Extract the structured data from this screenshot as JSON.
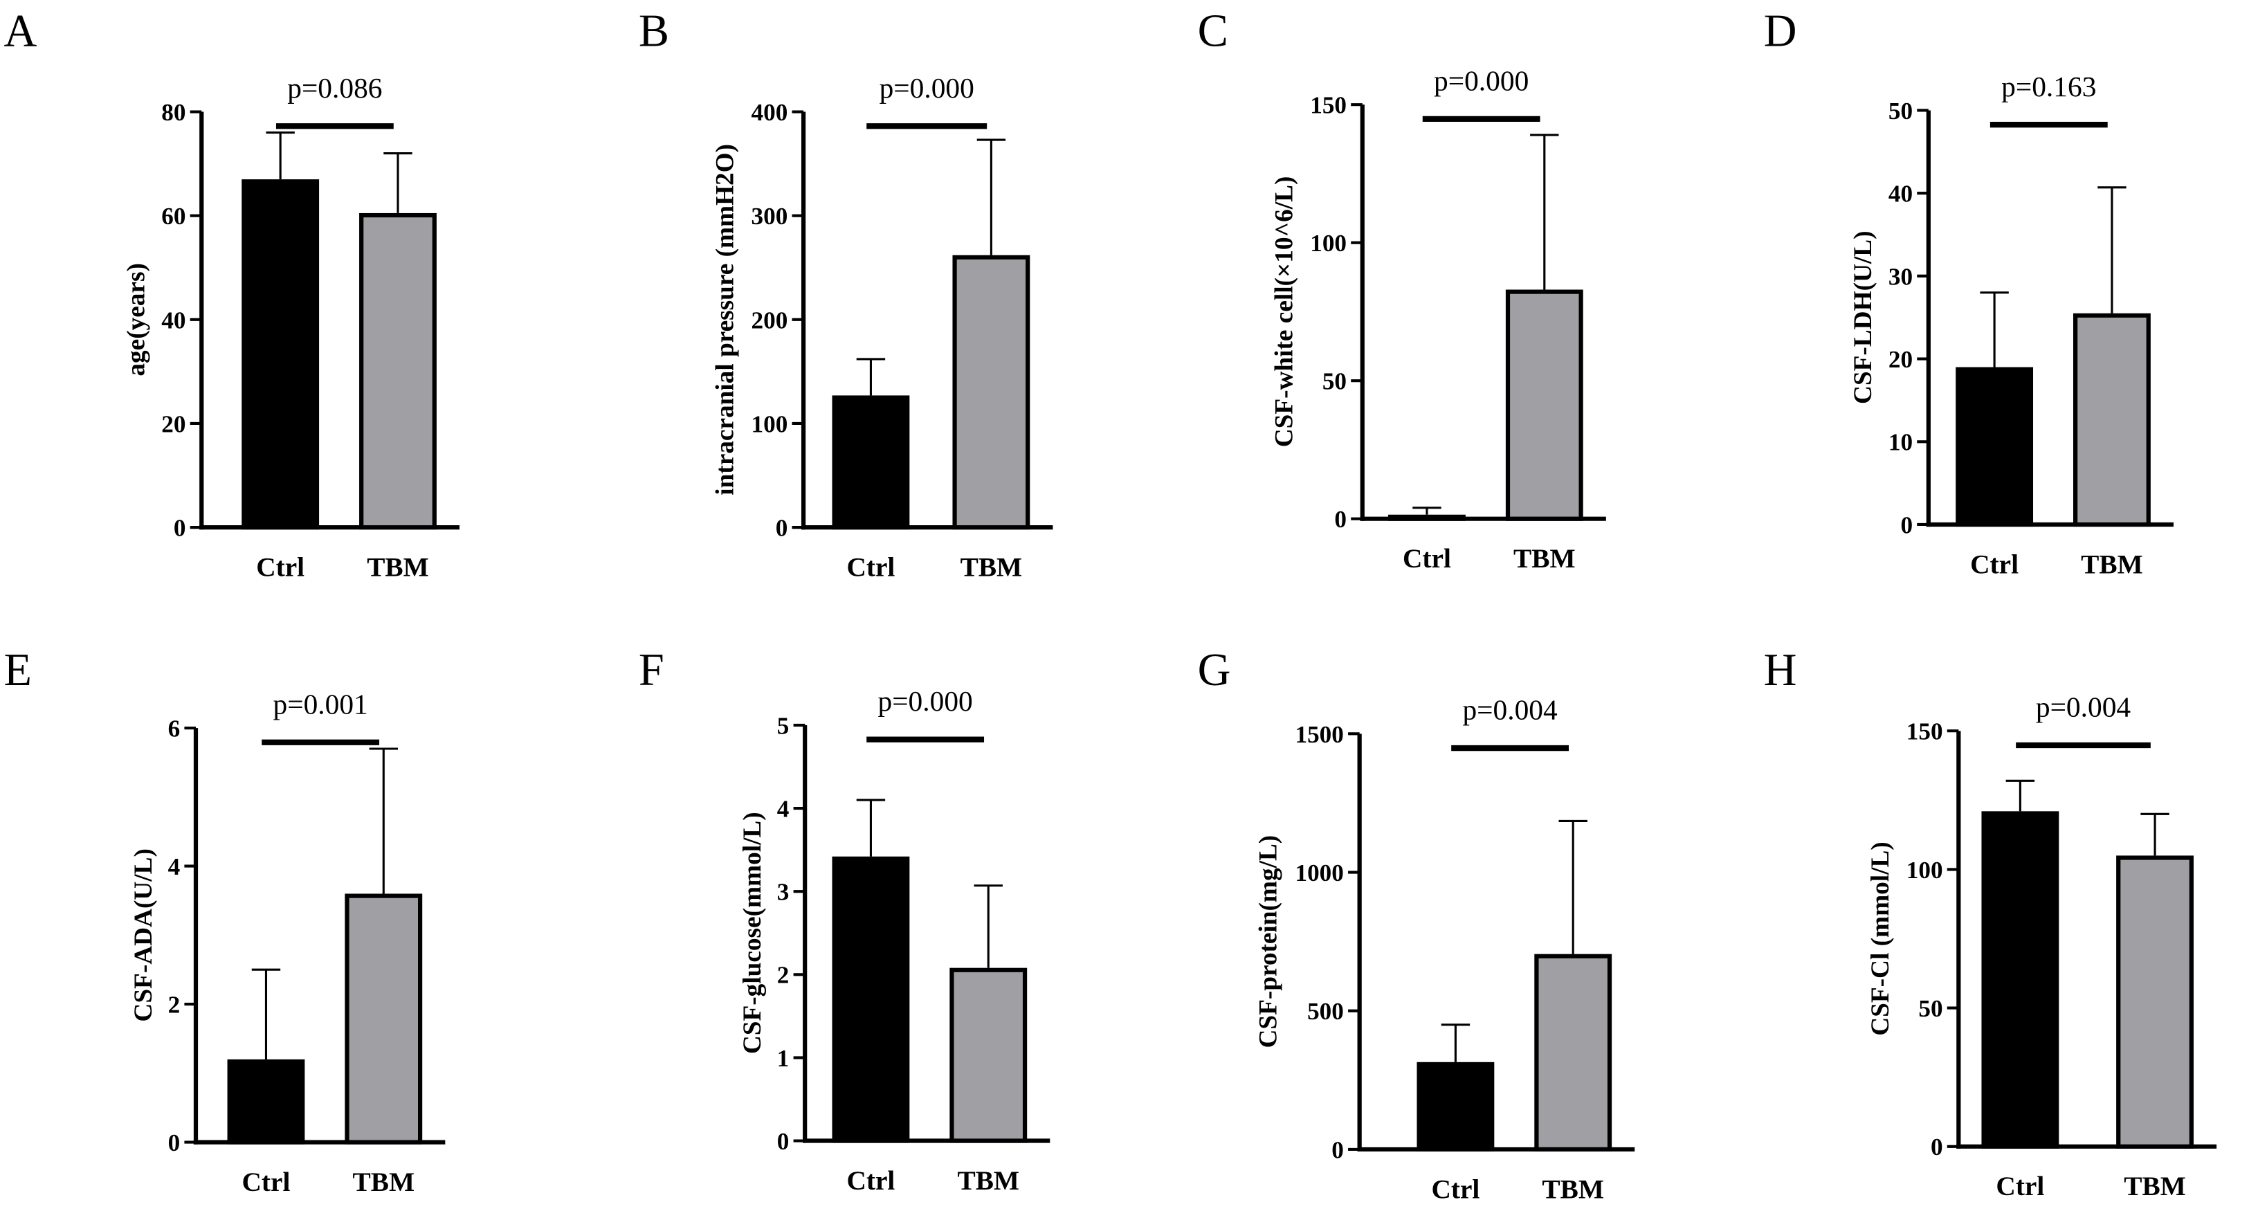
{
  "colors": {
    "ctrl": "#000000",
    "tbm": "#a0a0a4",
    "axis": "#000000"
  },
  "chart_data": [
    {
      "type": "bar",
      "panel": "A",
      "ylabel": "age(years)",
      "categories": [
        "Ctrl",
        "TBM"
      ],
      "values": [
        67,
        60.5
      ],
      "error_upper": [
        76,
        72
      ],
      "ylim": [
        0,
        80
      ],
      "ticks": [
        "0",
        "20",
        "40",
        "60",
        "80"
      ],
      "tick_values": [
        0,
        20,
        40,
        60,
        80
      ],
      "annotation": "p=0.086"
    },
    {
      "type": "bar",
      "panel": "B",
      "ylabel": "intracranial pressure (mmH2O)",
      "categories": [
        "Ctrl",
        "TBM"
      ],
      "values": [
        127,
        262
      ],
      "error_upper": [
        162,
        373
      ],
      "ylim": [
        0,
        400
      ],
      "ticks": [
        "0",
        "100",
        "200",
        "300",
        "400"
      ],
      "tick_values": [
        0,
        100,
        200,
        300,
        400
      ],
      "annotation": "p=0.000"
    },
    {
      "type": "bar",
      "panel": "C",
      "ylabel": "CSF-white cell(×10^6/L)",
      "categories": [
        "Ctrl",
        "TBM"
      ],
      "values": [
        1.5,
        83
      ],
      "error_upper": [
        4,
        139
      ],
      "ylim": [
        0,
        150
      ],
      "ticks": [
        "0",
        "50",
        "100",
        "150"
      ],
      "tick_values": [
        0,
        50,
        100,
        150
      ],
      "annotation": "p=0.000"
    },
    {
      "type": "bar",
      "panel": "D",
      "ylabel": "CSF-LDH(U/L)",
      "categories": [
        "Ctrl",
        "TBM"
      ],
      "values": [
        19,
        25.5
      ],
      "error_upper": [
        28,
        40.7
      ],
      "ylim": [
        0,
        50
      ],
      "ticks": [
        "0",
        "10",
        "20",
        "30",
        "40",
        "50"
      ],
      "tick_values": [
        0,
        10,
        20,
        30,
        40,
        50
      ],
      "annotation": "p=0.163"
    },
    {
      "type": "bar",
      "panel": "E",
      "ylabel": "CSF-ADA(U/L)",
      "categories": [
        "Ctrl",
        "TBM"
      ],
      "values": [
        1.2,
        3.6
      ],
      "error_upper": [
        2.5,
        5.7
      ],
      "ylim": [
        0,
        6
      ],
      "ticks": [
        "0",
        "2",
        "4",
        "6"
      ],
      "tick_values": [
        0,
        2,
        4,
        6
      ],
      "annotation": "p=0.001"
    },
    {
      "type": "bar",
      "panel": "F",
      "ylabel": "CSF-glucose(mmol/L)",
      "categories": [
        "Ctrl",
        "TBM"
      ],
      "values": [
        3.42,
        2.08
      ],
      "error_upper": [
        4.1,
        3.07
      ],
      "ylim": [
        0,
        5
      ],
      "ticks": [
        "0",
        "1",
        "2",
        "3",
        "4",
        "5"
      ],
      "tick_values": [
        0,
        1,
        2,
        3,
        4,
        5
      ],
      "annotation": "p=0.000"
    },
    {
      "type": "bar",
      "panel": "G",
      "ylabel": "CSF-protein(mg/L)",
      "categories": [
        "Ctrl",
        "TBM"
      ],
      "values": [
        315,
        705
      ],
      "error_upper": [
        450,
        1185
      ],
      "ylim": [
        0,
        1500
      ],
      "ticks": [
        "0",
        "500",
        "1000",
        "1500"
      ],
      "tick_values": [
        0,
        500,
        1000,
        1500
      ],
      "annotation": "p=0.004"
    },
    {
      "type": "bar",
      "panel": "H",
      "ylabel": "CSF-Cl (mmol/L)",
      "categories": [
        "Ctrl",
        "TBM"
      ],
      "values": [
        121,
        105
      ],
      "error_upper": [
        132,
        120
      ],
      "ylim": [
        0,
        150
      ],
      "ticks": [
        "0",
        "50",
        "100",
        "150"
      ],
      "tick_values": [
        0,
        50,
        100,
        150
      ],
      "annotation": "p=0.004"
    }
  ]
}
